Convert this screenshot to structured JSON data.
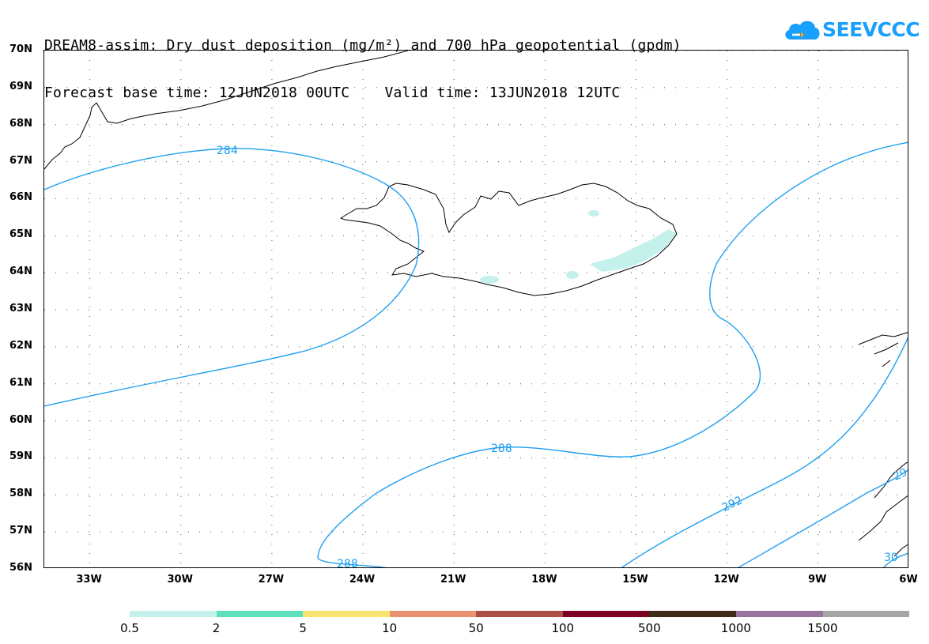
{
  "title": {
    "line1": "DREAM8-assim: Dry dust deposition (mg/m²) and 700 hPa geopotential (gpdm)",
    "line2": "Forecast base time: 12JUN2018 00UTC    Valid time: 13JUN2018 12UTC"
  },
  "logo": {
    "text": "SEEVCCC",
    "icon": "cloud-logo-icon",
    "color": "#19a0ff"
  },
  "map": {
    "region": "North Atlantic / Iceland",
    "projection": "lat-lon",
    "lat_range": [
      56,
      70
    ],
    "lon_range": [
      -34.5,
      -6
    ],
    "grid": true,
    "lat_labels": [
      "70N",
      "69N",
      "68N",
      "67N",
      "66N",
      "65N",
      "64N",
      "63N",
      "62N",
      "61N",
      "60N",
      "59N",
      "58N",
      "57N",
      "56N"
    ],
    "lon_labels": [
      "33W",
      "30W",
      "27W",
      "24W",
      "21W",
      "18W",
      "15W",
      "12W",
      "9W",
      "6W"
    ],
    "contour_color": "#1e9ff0",
    "contour_labels": [
      "284",
      "288",
      "288",
      "292",
      "29",
      "30"
    ]
  },
  "colorbar": {
    "colors": [
      "#c4f1ec",
      "#5ee0bb",
      "#f8e571",
      "#e99370",
      "#ad4e44",
      "#7e0022",
      "#3e2b18",
      "#97749f",
      "#a6a6a6"
    ],
    "labels": [
      "0.5",
      "2",
      "5",
      "10",
      "50",
      "100",
      "500",
      "1000",
      "1500"
    ]
  }
}
